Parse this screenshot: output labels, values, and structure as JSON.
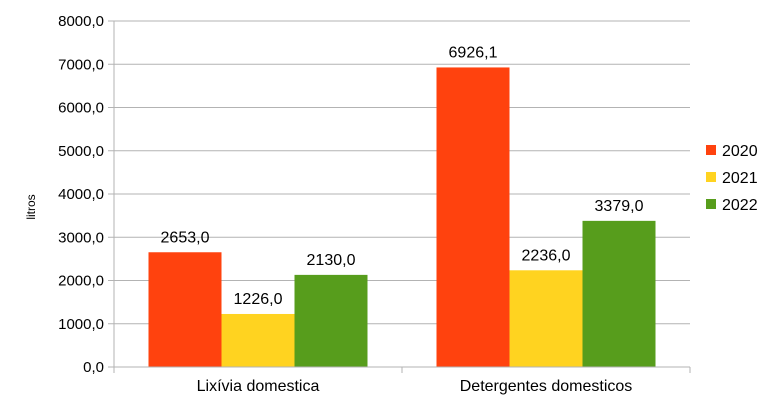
{
  "chart_data": {
    "type": "bar",
    "ylabel": "litros",
    "categories": [
      "Lixívia domestica",
      "Detergentes domesticos"
    ],
    "series": [
      {
        "name": "2020",
        "values": [
          2653.0,
          6926.1
        ],
        "labels": [
          "2653,0",
          "6926,1"
        ],
        "color": "#ff420e"
      },
      {
        "name": "2021",
        "values": [
          1226.0,
          2236.0
        ],
        "labels": [
          "1226,0",
          "2236,0"
        ],
        "color": "#ffd320"
      },
      {
        "name": "2022",
        "values": [
          2130.0,
          3379.0
        ],
        "labels": [
          "2130,0",
          "3379,0"
        ],
        "color": "#579d1c"
      }
    ],
    "ylim": [
      0,
      8000
    ],
    "yticks": [
      {
        "value": 0,
        "label": "0,0"
      },
      {
        "value": 1000,
        "label": "1000,0"
      },
      {
        "value": 2000,
        "label": "2000,0"
      },
      {
        "value": 3000,
        "label": "3000,0"
      },
      {
        "value": 4000,
        "label": "4000,0"
      },
      {
        "value": 5000,
        "label": "5000,0"
      },
      {
        "value": 6000,
        "label": "6000,0"
      },
      {
        "value": 7000,
        "label": "7000,0"
      },
      {
        "value": 8000,
        "label": "8000,0"
      }
    ],
    "grid": true,
    "gridColor": "#b3b3b3",
    "legendPosition": "right"
  }
}
